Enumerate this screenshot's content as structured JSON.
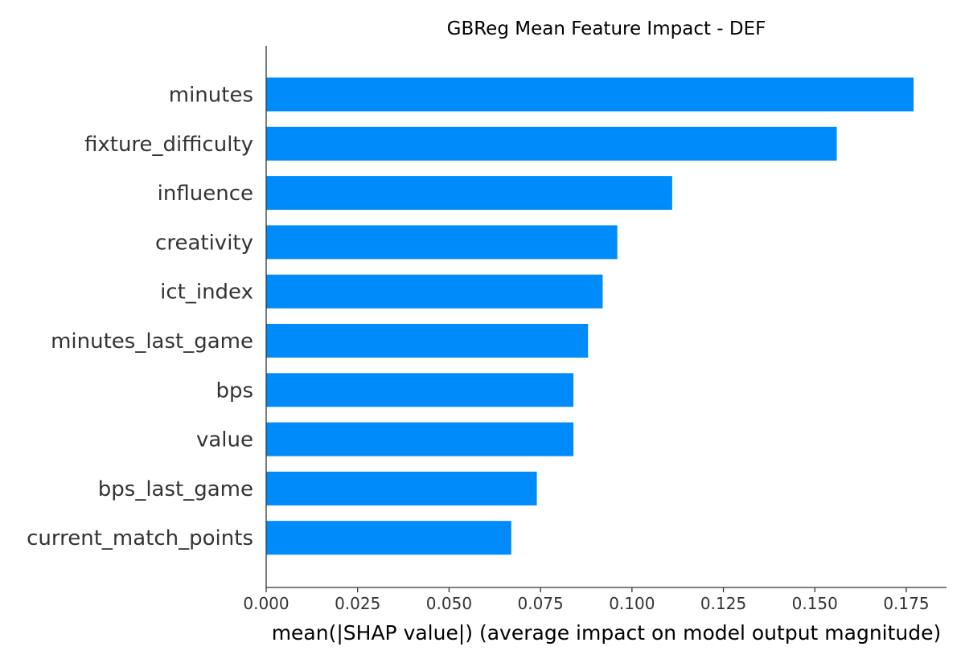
{
  "chart_data": {
    "type": "bar",
    "orientation": "horizontal",
    "title": "GBReg Mean Feature Impact - DEF",
    "xlabel": "mean(|SHAP value|) (average impact on model output magnitude)",
    "ylabel": "",
    "categories": [
      "minutes",
      "fixture_difficulty",
      "influence",
      "creativity",
      "ict_index",
      "minutes_last_game",
      "bps",
      "value",
      "bps_last_game",
      "current_match_points"
    ],
    "values": [
      0.177,
      0.156,
      0.111,
      0.096,
      0.092,
      0.088,
      0.084,
      0.084,
      0.074,
      0.067
    ],
    "xlim": [
      0,
      0.186
    ],
    "xticks": [
      "0.000",
      "0.025",
      "0.050",
      "0.075",
      "0.100",
      "0.125",
      "0.150",
      "0.175"
    ],
    "bar_color": "#008bfb",
    "grid": false,
    "legend": "none"
  }
}
